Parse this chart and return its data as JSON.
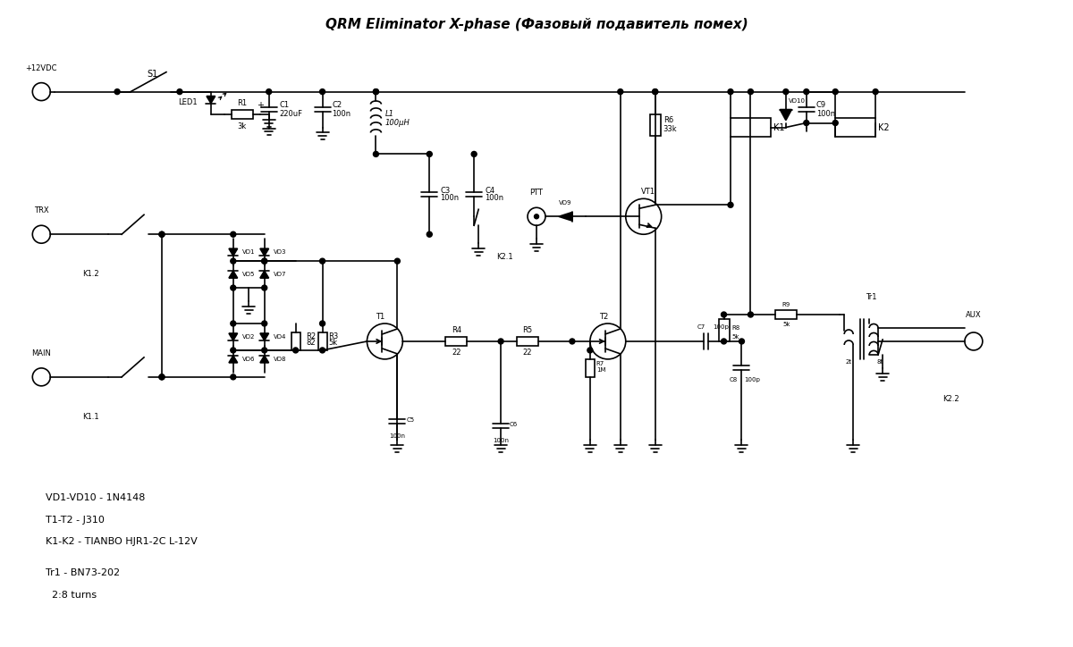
{
  "title": "QRM Eliminator X-phase (Фазовый подавитель помех)",
  "bg_color": "#ffffff",
  "line_color": "#000000",
  "notes_line1": "VD1-VD10 - 1N4148",
  "notes_line2": "T1-T2 - J310",
  "notes_line3": "K1-K2 - TIANBO HJR1-2C L-12V",
  "notes_line4": "",
  "notes_line5": "Tr1 - BN73-202",
  "notes_line6": "  2:8 turns"
}
